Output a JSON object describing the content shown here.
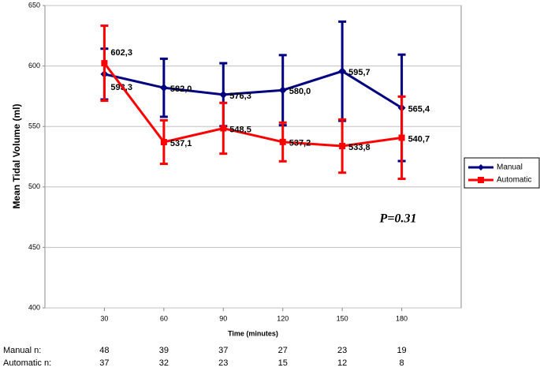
{
  "chart_data": {
    "type": "line",
    "y_label": "Mean Tidal Volume (ml)",
    "x_label": "Time (minutes)",
    "annotation": "P=0.31",
    "x": [
      30,
      60,
      90,
      120,
      150,
      180
    ],
    "xlim": [
      0,
      210
    ],
    "xticks": [
      30,
      60,
      90,
      120,
      150,
      180
    ],
    "ylim": [
      400,
      650
    ],
    "yticks": [
      400,
      450,
      500,
      550,
      600,
      650
    ],
    "grid": true,
    "legend": "right",
    "series": [
      {
        "name": "Manual",
        "color": "#000080",
        "values": [
          593.3,
          582.0,
          576.3,
          580.0,
          595.7,
          565.4
        ],
        "value_labels": [
          "593,3",
          "582,0",
          "576,3",
          "580,0",
          "595,7",
          "565,4"
        ],
        "errors": [
          21,
          24,
          26,
          29,
          41,
          44
        ],
        "n_label": "Manual n:",
        "n": [
          48,
          39,
          37,
          27,
          23,
          19
        ]
      },
      {
        "name": "Automatic",
        "color": "#ff0000",
        "values": [
          602.3,
          537.1,
          548.5,
          537.2,
          533.8,
          540.7
        ],
        "value_labels": [
          "602,3",
          "537,1",
          "548,5",
          "537,2",
          "533,8",
          "540,7"
        ],
        "errors": [
          31,
          18,
          21,
          16,
          22,
          34
        ],
        "n_label": "Automatic n:",
        "n": [
          37,
          32,
          23,
          15,
          12,
          8
        ]
      }
    ]
  }
}
